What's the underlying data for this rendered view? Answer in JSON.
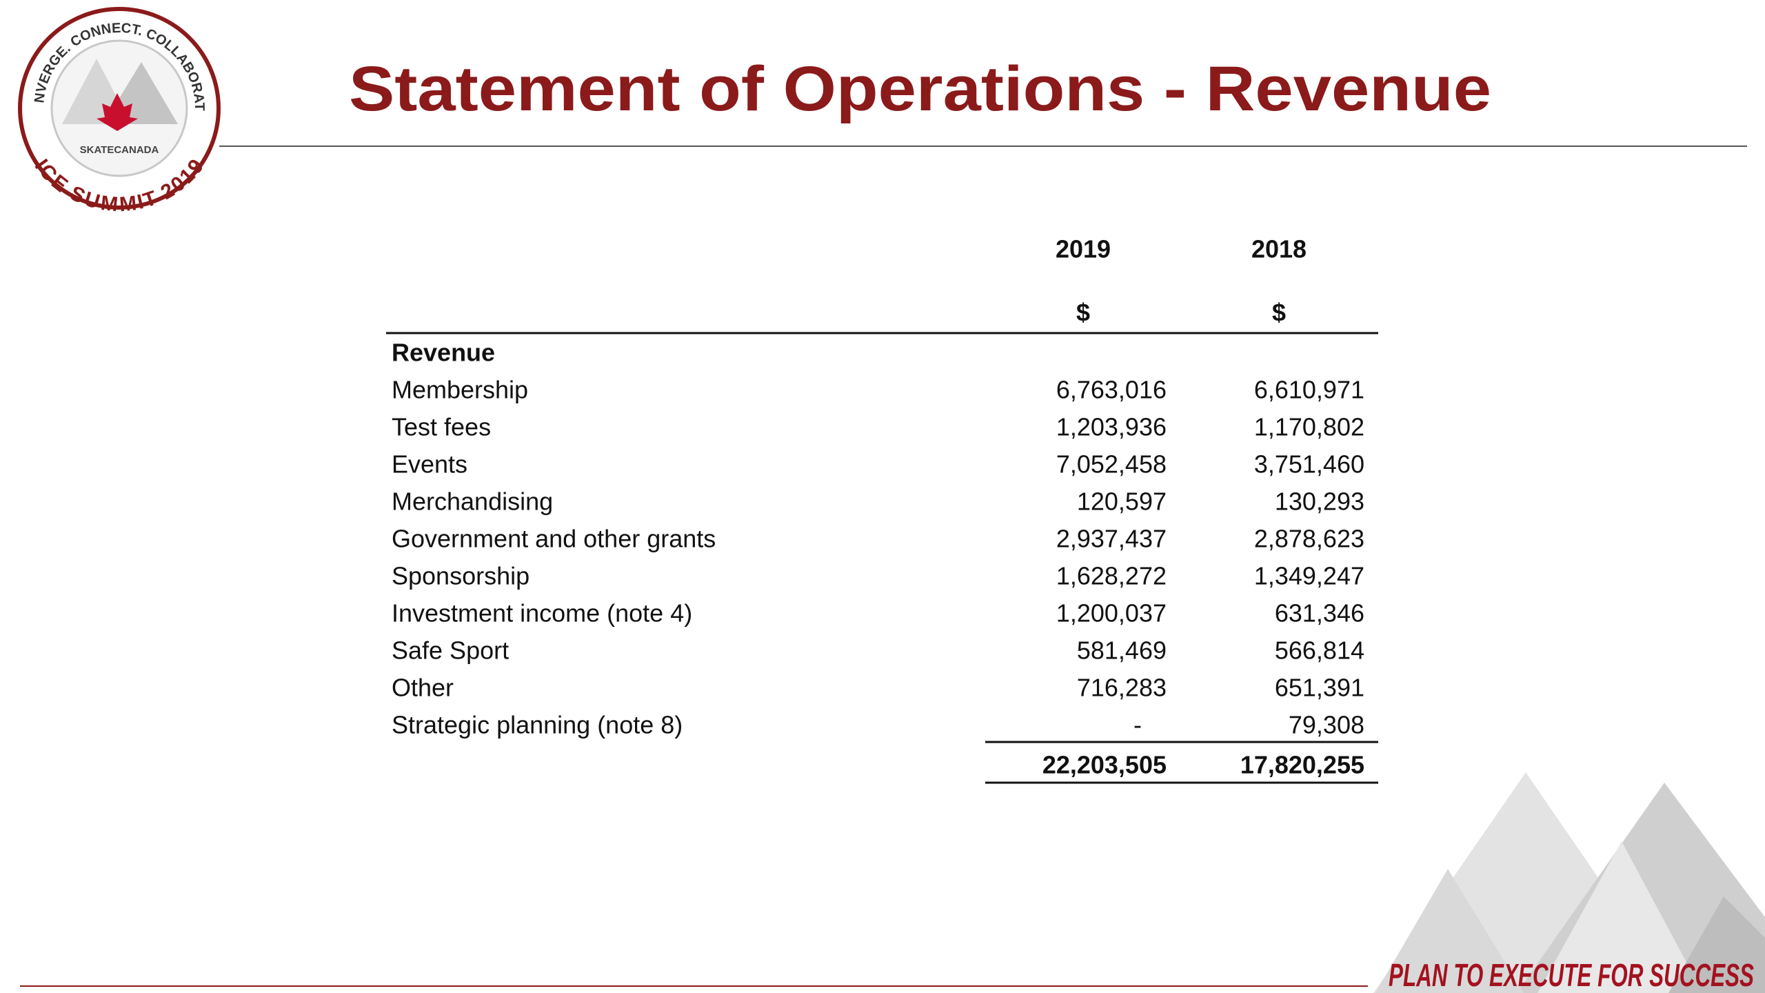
{
  "header": {
    "title": "Statement of Operations - Revenue",
    "logo": {
      "ring_top": "CONVERGE. CONNECT. COLLABORATE.",
      "brand": "SKATECANADA",
      "ring_bottom": "ICE SUMMIT 2019"
    }
  },
  "table": {
    "columns": [
      "2019",
      "2018"
    ],
    "units": [
      "$",
      "$"
    ],
    "section": "Revenue",
    "rows": [
      [
        "Membership",
        "6,763,016",
        "6,610,971"
      ],
      [
        "Test fees",
        "1,203,936",
        "1,170,802"
      ],
      [
        "Events",
        "7,052,458",
        "3,751,460"
      ],
      [
        "Merchandising",
        "120,597",
        "130,293"
      ],
      [
        "Government and other grants",
        "2,937,437",
        "2,878,623"
      ],
      [
        "Sponsorship",
        "1,628,272",
        "1,349,247"
      ],
      [
        "Investment income (note 4)",
        "1,200,037",
        "631,346"
      ],
      [
        "Safe Sport",
        "581,469",
        "566,814"
      ],
      [
        "Other",
        "716,283",
        "651,391"
      ],
      [
        "Strategic planning (note 8)",
        "-",
        "79,308"
      ]
    ],
    "total": [
      "22,203,505",
      "17,820,255"
    ]
  },
  "footer": {
    "tagline": "PLAN TO EXECUTE FOR SUCCESS"
  }
}
